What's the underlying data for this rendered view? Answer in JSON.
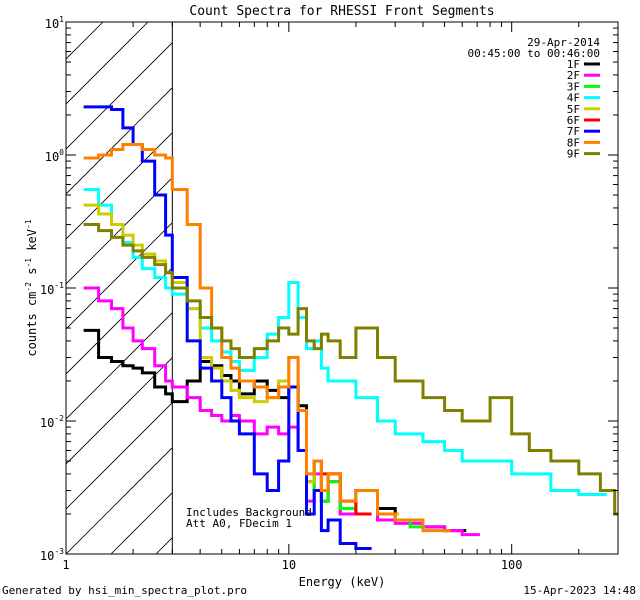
{
  "chart_data": {
    "type": "line",
    "title": "Count Spectra for RHESSI Front Segments",
    "xlabel": "Energy (keV)",
    "ylabel": {
      "base": "counts cm",
      "sup1": "-2",
      "mid": " s",
      "sup2": "-1",
      "end": " keV",
      "sup3": "-1"
    },
    "xscale": "log",
    "yscale": "log",
    "xlim": [
      1,
      300
    ],
    "ylim": [
      0.001,
      10
    ],
    "x_tick_labels": [
      "1",
      "10",
      "100"
    ],
    "y_tick_labels": [
      {
        "base": "10",
        "exp": "-3"
      },
      {
        "base": "10",
        "exp": "-2"
      },
      {
        "base": "10",
        "exp": "-1"
      },
      {
        "base": "10",
        "exp": "0"
      },
      {
        "base": "10",
        "exp": "1"
      }
    ],
    "annotations": {
      "date": "29-Apr-2014",
      "time_range": "00:45:00 to 00:46:00",
      "note_line1": "Includes Background",
      "note_line2": "Att A0, FDecim 1"
    },
    "attenuated_region_max_keV": 3,
    "series": [
      {
        "name": "1F",
        "color": "#000000",
        "x": [
          1.2,
          1.4,
          1.6,
          1.8,
          2.0,
          2.2,
          2.5,
          2.8,
          3.0,
          3.5,
          4.0,
          4.5,
          5.0,
          5.5,
          6.0,
          7.0,
          8.0,
          9.0,
          10,
          11,
          12,
          13,
          14,
          15,
          17,
          20,
          25,
          30,
          40,
          50
        ],
        "y": [
          0.048,
          0.03,
          0.028,
          0.026,
          0.025,
          0.023,
          0.018,
          0.016,
          0.014,
          0.02,
          0.028,
          0.026,
          0.022,
          0.02,
          0.016,
          0.02,
          0.017,
          0.015,
          0.018,
          0.013,
          0.0035,
          0.005,
          0.0025,
          0.004,
          0.002,
          0.003,
          0.0022,
          0.0018,
          0.0016,
          0.0015
        ]
      },
      {
        "name": "2F",
        "color": "#ff00ff",
        "x": [
          1.2,
          1.4,
          1.6,
          1.8,
          2.0,
          2.2,
          2.5,
          2.8,
          3.0,
          3.5,
          4.0,
          4.5,
          5.0,
          5.5,
          6.0,
          7.0,
          8.0,
          9.0,
          10,
          11,
          12,
          13,
          14,
          15,
          17,
          20,
          25,
          30,
          40,
          50,
          60
        ],
        "y": [
          0.1,
          0.08,
          0.07,
          0.05,
          0.04,
          0.035,
          0.026,
          0.02,
          0.018,
          0.015,
          0.012,
          0.011,
          0.01,
          0.011,
          0.01,
          0.008,
          0.009,
          0.008,
          0.009,
          0.006,
          0.0025,
          0.004,
          0.0025,
          0.0035,
          0.002,
          0.003,
          0.0018,
          0.0017,
          0.0016,
          0.0015,
          0.0014
        ]
      },
      {
        "name": "3F",
        "color": "#00ff00",
        "x": [
          12,
          13,
          14,
          15,
          17,
          20,
          25,
          30,
          35
        ],
        "y": [
          0.004,
          0.003,
          0.0025,
          0.0035,
          0.0022,
          0.003,
          0.002,
          0.0018,
          0.0016
        ]
      },
      {
        "name": "4F",
        "color": "#00ffff",
        "x": [
          1.2,
          1.4,
          1.6,
          1.8,
          2.0,
          2.2,
          2.5,
          2.8,
          3.0,
          3.5,
          4.0,
          4.5,
          5.0,
          5.5,
          6.0,
          7.0,
          8.0,
          9.0,
          10,
          11,
          12,
          13,
          14,
          15,
          17,
          20,
          25,
          30,
          40,
          50,
          60,
          70,
          100,
          150,
          200
        ],
        "y": [
          0.55,
          0.42,
          0.3,
          0.22,
          0.17,
          0.14,
          0.12,
          0.1,
          0.09,
          0.07,
          0.05,
          0.04,
          0.033,
          0.028,
          0.024,
          0.03,
          0.045,
          0.06,
          0.11,
          0.06,
          0.035,
          0.04,
          0.025,
          0.02,
          0.02,
          0.015,
          0.01,
          0.008,
          0.007,
          0.006,
          0.005,
          0.005,
          0.004,
          0.003,
          0.0028
        ]
      },
      {
        "name": "5F",
        "color": "#cccc00",
        "x": [
          1.2,
          1.4,
          1.6,
          1.8,
          2.0,
          2.2,
          2.5,
          2.8,
          3.0,
          3.5,
          4.0,
          4.5,
          5.0,
          5.5,
          6.0,
          7.0,
          8.0,
          9.0,
          10,
          11,
          12,
          13,
          14,
          15,
          17,
          20,
          25
        ],
        "y": [
          0.42,
          0.36,
          0.3,
          0.25,
          0.21,
          0.18,
          0.16,
          0.13,
          0.11,
          0.07,
          0.03,
          0.025,
          0.02,
          0.017,
          0.015,
          0.014,
          0.015,
          0.02,
          0.03,
          0.012,
          0.0035,
          0.005,
          0.003,
          0.004,
          0.0025,
          0.003,
          0.002
        ]
      },
      {
        "name": "6F",
        "color": "#ff0000",
        "x": [
          14,
          17,
          20
        ],
        "y": [
          0.004,
          0.0025,
          0.002
        ]
      },
      {
        "name": "7F",
        "color": "#0000ff",
        "x": [
          1.2,
          1.4,
          1.6,
          1.8,
          2.0,
          2.2,
          2.5,
          2.8,
          3.0,
          3.5,
          4.0,
          4.5,
          5.0,
          5.5,
          6.0,
          7.0,
          8.0,
          9.0,
          10,
          11,
          12,
          13,
          14,
          15,
          17,
          20
        ],
        "y": [
          2.3,
          2.3,
          2.2,
          1.6,
          1.2,
          0.9,
          0.5,
          0.25,
          0.12,
          0.04,
          0.025,
          0.02,
          0.015,
          0.01,
          0.008,
          0.004,
          0.003,
          0.005,
          0.018,
          0.006,
          0.002,
          0.003,
          0.0015,
          0.0018,
          0.0012,
          0.0011
        ]
      },
      {
        "name": "8F",
        "color": "#ff8000",
        "x": [
          1.2,
          1.4,
          1.6,
          1.8,
          2.0,
          2.2,
          2.5,
          2.8,
          3.0,
          3.5,
          4.0,
          4.5,
          5.0,
          5.5,
          6.0,
          7.0,
          8.0,
          9.0,
          10,
          11,
          12,
          13,
          14,
          15,
          17,
          20,
          25,
          30,
          40
        ],
        "y": [
          0.95,
          1.0,
          1.1,
          1.2,
          1.2,
          1.1,
          1.0,
          0.95,
          0.55,
          0.3,
          0.1,
          0.05,
          0.03,
          0.025,
          0.02,
          0.018,
          0.015,
          0.018,
          0.03,
          0.012,
          0.004,
          0.005,
          0.003,
          0.004,
          0.0025,
          0.003,
          0.002,
          0.0018,
          0.0015
        ]
      },
      {
        "name": "9F",
        "color": "#808000",
        "x": [
          1.2,
          1.4,
          1.6,
          1.8,
          2.0,
          2.2,
          2.5,
          2.8,
          3.0,
          3.5,
          4.0,
          4.5,
          5.0,
          5.5,
          6.0,
          7.0,
          8.0,
          9.0,
          10,
          11,
          12,
          13,
          14,
          15,
          17,
          20,
          25,
          30,
          40,
          50,
          60,
          70,
          80,
          100,
          120,
          150,
          200,
          250,
          290
        ],
        "y": [
          0.3,
          0.27,
          0.24,
          0.21,
          0.19,
          0.17,
          0.15,
          0.13,
          0.1,
          0.08,
          0.06,
          0.05,
          0.04,
          0.035,
          0.03,
          0.035,
          0.04,
          0.05,
          0.045,
          0.07,
          0.04,
          0.035,
          0.045,
          0.04,
          0.03,
          0.05,
          0.03,
          0.02,
          0.015,
          0.012,
          0.01,
          0.01,
          0.015,
          0.008,
          0.006,
          0.005,
          0.004,
          0.003,
          0.002
        ]
      }
    ]
  },
  "footer": {
    "generated_by": "Generated by hsi_min_spectra_plot.pro",
    "timestamp": "15-Apr-2023 14:48"
  }
}
